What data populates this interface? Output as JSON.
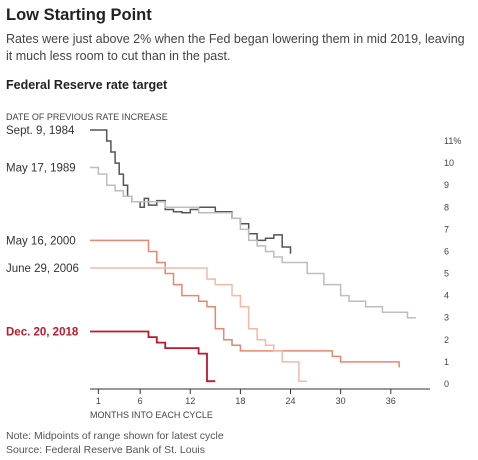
{
  "header": {
    "title": "Low Starting Point",
    "subtitle": "Rates were just above 2% when the Fed began lowering them in mid 2019, leaving it much less room to cut than in the past."
  },
  "chart_data": {
    "type": "line",
    "title": "Federal Reserve rate target",
    "legend_title": "DATE OF PREVIOUS RATE INCREASE",
    "xlabel": "MONTHS INTO EACH CYCLE",
    "ylabel": "",
    "xlim": [
      0,
      41
    ],
    "ylim": [
      0,
      11
    ],
    "x_ticks": [
      {
        "value": 1,
        "label": "1"
      },
      {
        "value": 6,
        "label": "6"
      },
      {
        "value": 12,
        "label": "12"
      },
      {
        "value": 18,
        "label": "18"
      },
      {
        "value": 24,
        "label": "24"
      },
      {
        "value": 30,
        "label": "30"
      },
      {
        "value": 36,
        "label": "36"
      }
    ],
    "y_ticks": [
      {
        "value": 11,
        "label": "11%"
      },
      {
        "value": 10,
        "label": "10"
      },
      {
        "value": 9,
        "label": "9"
      },
      {
        "value": 8,
        "label": "8"
      },
      {
        "value": 7,
        "label": "7"
      },
      {
        "value": 6,
        "label": "6"
      },
      {
        "value": 5,
        "label": "5"
      },
      {
        "value": 4,
        "label": "4"
      },
      {
        "value": 3,
        "label": "3"
      },
      {
        "value": 2,
        "label": "2"
      },
      {
        "value": 1,
        "label": "1"
      },
      {
        "value": 0,
        "label": "0"
      }
    ],
    "step": true,
    "grid": false,
    "series": [
      {
        "name": "Sept. 9, 1984",
        "color": "#555555",
        "label_y": 11.5,
        "label_bold": false,
        "label_color": "#333333",
        "points": [
          [
            0,
            11.5
          ],
          [
            2,
            11.5
          ],
          [
            2,
            11.0
          ],
          [
            2.5,
            11.0
          ],
          [
            2.5,
            10.5
          ],
          [
            3,
            10.5
          ],
          [
            3,
            10.0
          ],
          [
            3.5,
            10.0
          ],
          [
            3.5,
            9.5
          ],
          [
            4,
            9.5
          ],
          [
            4,
            9.0
          ],
          [
            4.5,
            9.0
          ],
          [
            4.5,
            8.5
          ],
          [
            5,
            8.5
          ],
          [
            5,
            8.25
          ],
          [
            6,
            8.25
          ],
          [
            6,
            8.0
          ],
          [
            6.5,
            8.0
          ],
          [
            6.5,
            8.4
          ],
          [
            7,
            8.4
          ],
          [
            7,
            8.1
          ],
          [
            8,
            8.1
          ],
          [
            8,
            8.3
          ],
          [
            9,
            8.3
          ],
          [
            9,
            7.9
          ],
          [
            10,
            7.9
          ],
          [
            10,
            7.8
          ],
          [
            11,
            7.8
          ],
          [
            11,
            7.75
          ],
          [
            12,
            7.75
          ],
          [
            12,
            7.9
          ],
          [
            13,
            7.9
          ],
          [
            13,
            8.0
          ],
          [
            15,
            8.0
          ],
          [
            15,
            7.8
          ],
          [
            17,
            7.8
          ],
          [
            17,
            7.5
          ],
          [
            18,
            7.5
          ],
          [
            18,
            7.25
          ],
          [
            19,
            7.25
          ],
          [
            19,
            6.8
          ],
          [
            20,
            6.8
          ],
          [
            20,
            6.5
          ],
          [
            21,
            6.5
          ],
          [
            21,
            6.6
          ],
          [
            22,
            6.6
          ],
          [
            22,
            6.75
          ],
          [
            23,
            6.75
          ],
          [
            23,
            6.2
          ],
          [
            24,
            6.2
          ],
          [
            24,
            5.9
          ]
        ]
      },
      {
        "name": "May 17, 1989",
        "color": "#bdbdbd",
        "label_y": 9.8,
        "label_bold": false,
        "label_color": "#333333",
        "points": [
          [
            0,
            9.8
          ],
          [
            1,
            9.8
          ],
          [
            1,
            9.5
          ],
          [
            2,
            9.5
          ],
          [
            2,
            9.0
          ],
          [
            3,
            9.0
          ],
          [
            3,
            8.75
          ],
          [
            4,
            8.75
          ],
          [
            4,
            8.5
          ],
          [
            5,
            8.5
          ],
          [
            5,
            8.25
          ],
          [
            9,
            8.25
          ],
          [
            9,
            8.0
          ],
          [
            13,
            8.0
          ],
          [
            13,
            7.75
          ],
          [
            17,
            7.75
          ],
          [
            17,
            7.5
          ],
          [
            18,
            7.5
          ],
          [
            18,
            7.0
          ],
          [
            19,
            7.0
          ],
          [
            19,
            6.5
          ],
          [
            20,
            6.5
          ],
          [
            20,
            6.25
          ],
          [
            21,
            6.25
          ],
          [
            21,
            6.0
          ],
          [
            22,
            6.0
          ],
          [
            22,
            5.75
          ],
          [
            23,
            5.75
          ],
          [
            23,
            5.5
          ],
          [
            26,
            5.5
          ],
          [
            26,
            5.0
          ],
          [
            28,
            5.0
          ],
          [
            28,
            4.5
          ],
          [
            30,
            4.5
          ],
          [
            30,
            4.0
          ],
          [
            31,
            4.0
          ],
          [
            31,
            3.75
          ],
          [
            33,
            3.75
          ],
          [
            33,
            3.5
          ],
          [
            35,
            3.5
          ],
          [
            35,
            3.25
          ],
          [
            38,
            3.25
          ],
          [
            38,
            3.0
          ],
          [
            39,
            3.0
          ]
        ]
      },
      {
        "name": "May 16, 2000",
        "color": "#e6876e",
        "label_y": 6.5,
        "label_bold": false,
        "label_color": "#333333",
        "points": [
          [
            0,
            6.5
          ],
          [
            7,
            6.5
          ],
          [
            7,
            6.0
          ],
          [
            8,
            6.0
          ],
          [
            8,
            5.5
          ],
          [
            9,
            5.5
          ],
          [
            9,
            5.0
          ],
          [
            10,
            5.0
          ],
          [
            10,
            4.5
          ],
          [
            11,
            4.5
          ],
          [
            11,
            4.0
          ],
          [
            13,
            4.0
          ],
          [
            13,
            3.75
          ],
          [
            14,
            3.75
          ],
          [
            14,
            3.5
          ],
          [
            15,
            3.5
          ],
          [
            15,
            2.5
          ],
          [
            16,
            2.5
          ],
          [
            16,
            2.0
          ],
          [
            17,
            2.0
          ],
          [
            17,
            1.75
          ],
          [
            18,
            1.75
          ],
          [
            18,
            1.5
          ],
          [
            29,
            1.5
          ],
          [
            29,
            1.25
          ],
          [
            30,
            1.25
          ],
          [
            30,
            1.0
          ],
          [
            37,
            1.0
          ],
          [
            37,
            0.75
          ]
        ]
      },
      {
        "name": "June 29, 2006",
        "color": "#f4b8a6",
        "label_y": 5.25,
        "label_bold": false,
        "label_color": "#333333",
        "points": [
          [
            0,
            5.25
          ],
          [
            14,
            5.25
          ],
          [
            14,
            4.75
          ],
          [
            15,
            4.75
          ],
          [
            15,
            4.5
          ],
          [
            17,
            4.5
          ],
          [
            17,
            4.0
          ],
          [
            18,
            4.0
          ],
          [
            18,
            3.5
          ],
          [
            19,
            3.5
          ],
          [
            19,
            2.5
          ],
          [
            20,
            2.5
          ],
          [
            20,
            2.0
          ],
          [
            21,
            2.0
          ],
          [
            21,
            1.75
          ],
          [
            22,
            1.75
          ],
          [
            22,
            1.5
          ],
          [
            23,
            1.5
          ],
          [
            23,
            1.0
          ],
          [
            25,
            1.0
          ],
          [
            25,
            0.125
          ],
          [
            26,
            0.125
          ]
        ]
      },
      {
        "name": "Dec. 20, 2018",
        "color": "#c0172b",
        "label_y": 2.375,
        "label_bold": true,
        "label_color": "#c0172b",
        "points": [
          [
            0,
            2.375
          ],
          [
            7,
            2.375
          ],
          [
            7,
            2.125
          ],
          [
            8,
            2.125
          ],
          [
            8,
            1.875
          ],
          [
            9,
            1.875
          ],
          [
            9,
            1.625
          ],
          [
            13,
            1.625
          ],
          [
            13,
            1.375
          ],
          [
            14,
            1.375
          ],
          [
            14,
            0.125
          ],
          [
            15,
            0.125
          ]
        ]
      }
    ],
    "note": "Note: Midpoints of range shown for latest cycle",
    "source": "Source: Federal Reserve Bank of St. Louis"
  }
}
